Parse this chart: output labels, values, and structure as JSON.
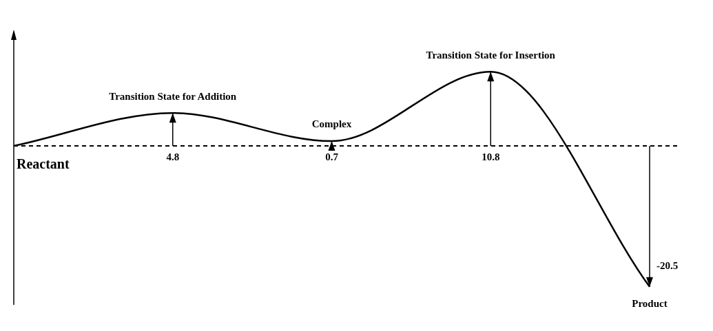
{
  "chart_data": {
    "type": "line",
    "categories": [
      "Reactant",
      "Transition State for Addition",
      "Complex",
      "Transition State for Insertion",
      "Product"
    ],
    "values": [
      0,
      4.8,
      0.7,
      10.8,
      -20.5
    ],
    "value_labels": [
      null,
      "4.8",
      "0.7",
      "10.8",
      "-20.5"
    ],
    "color": "#000000",
    "marker": "none",
    "line_style": "solid",
    "legend": false,
    "tick_labels": false,
    "ref_lines": [
      {
        "axis": "y",
        "value": 0,
        "line_style": "dashed",
        "color": "#000000"
      }
    ]
  }
}
